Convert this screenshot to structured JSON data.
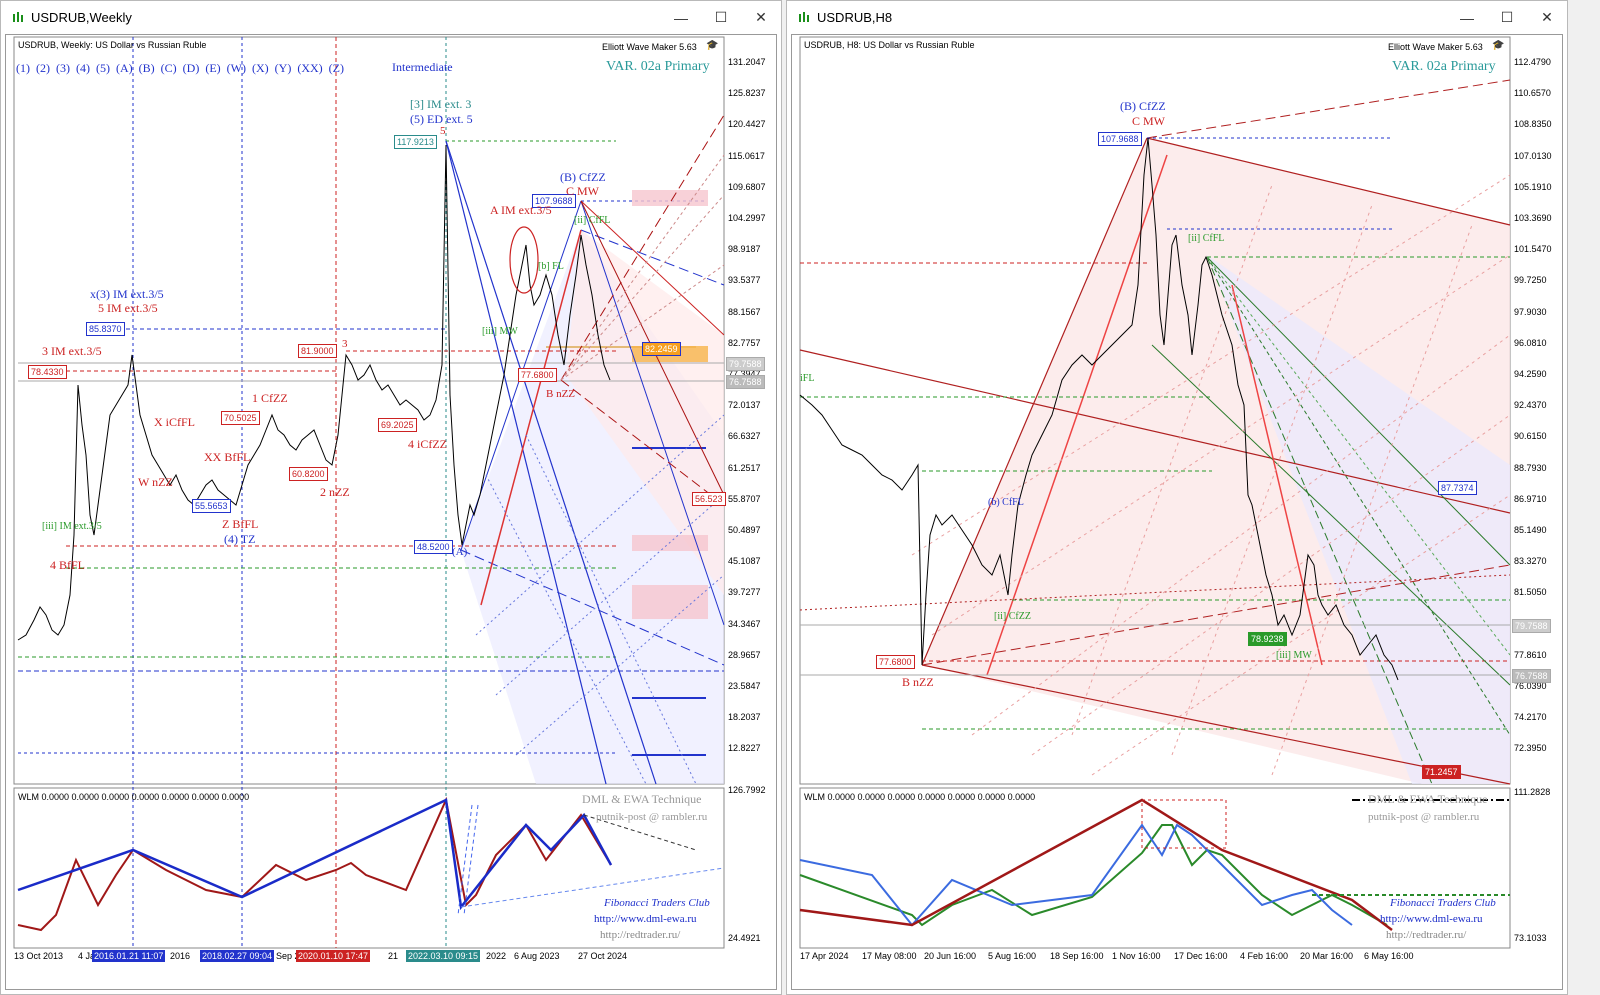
{
  "left": {
    "title": "USDRUB,Weekly",
    "header": "USDRUB, Weekly:  US Dollar vs Russian Ruble",
    "tool": "Elliott Wave Maker 5.63",
    "variant": "VAR. 02a Primary",
    "degree_buttons": [
      "(1)",
      "(2)",
      "(3)",
      "(4)",
      "(5)",
      "(A)",
      "(B)",
      "(C)",
      "(D)",
      "(E)",
      "(W)",
      "(X)",
      "(Y)",
      "(XX)",
      "(Z)"
    ],
    "degree_label": "Intermediate",
    "price_ticks": [
      "131.2047",
      "125.8237",
      "120.4427",
      "115.0617",
      "109.6807",
      "104.2997",
      "98.9187",
      "93.5377",
      "88.1567",
      "82.7757",
      "77.3947",
      "72.0137",
      "66.6327",
      "61.2517",
      "55.8707",
      "50.4897",
      "45.1087",
      "39.7277",
      "34.3467",
      "28.9657",
      "23.5847",
      "18.2037",
      "12.8227"
    ],
    "current_prices": [
      "79.7588",
      "76.7588"
    ],
    "boxes": {
      "b117": "117.9213",
      "b107": "107.9688",
      "b85": "85.8370",
      "b78": "78.4330",
      "b81": "81.9000",
      "b70": "70.5025",
      "b69": "69.2025",
      "b60": "60.8200",
      "b55": "55.5653",
      "b48": "48.5200",
      "b77": "77.6800",
      "b82": "82.2459",
      "b56": "56.523"
    },
    "labels": {
      "im3": "[3] IM ext. 3",
      "ed5": "(5) ED ext. 5",
      "five": "5",
      "bcfzz": "(B) CfZZ",
      "cmw": "C MW",
      "aim": "A IM ext.3/5",
      "x3": "x(3) IM ext.3/5",
      "im5": "5 IM ext.3/5",
      "im3b": "3 IM ext.3/5",
      "three": "3",
      "cfzz1": "1 CfZZ",
      "xicfl": "X iCfFL",
      "wnzz": "W nZZ",
      "xxbfl": "XX BfFL",
      "zbfl": "Z BfFL",
      "tz4": "(4) TZ",
      "nzz2": "2 nZZ",
      "icfzz4": "4 iCfZZ",
      "bffl4": "4 BfFL",
      "iiim": "[iii] IM ext.3/5",
      "bnzz": "B nZZ",
      "iiimw": "[iii] MW",
      "a_cap": "(A)",
      "bfl": "[b] FL",
      "iicfl": "[ii] CfFL"
    },
    "osc_header": "WLM 0.0000 0.0000 0.0000 0.0000 0.0000 0.0000 0.0000",
    "osc_ticks": [
      "126.7992",
      "24.4921"
    ],
    "footer": {
      "technique": "DML & EWA Technique",
      "email": "putnik-post @ rambler.ru",
      "club": "Fibonacci   Traders   Club",
      "site1": "http://www.dml-ewa.ru",
      "site2": "http://redtrader.ru/"
    },
    "dates": [
      "13 Oct 2013",
      "4 Jan",
      "2016",
      "Sep 2",
      "21",
      "2022",
      "6 Aug 2023",
      "27 Oct 2024"
    ],
    "date_tags": [
      "2016.01.21 11:07",
      "2018.02.27 09:04",
      "2020.01.10 17:47",
      "2022.03.10 09:15"
    ]
  },
  "right": {
    "title": "USDRUB,H8",
    "header": "USDRUB, H8:  US Dollar vs Russian Ruble",
    "tool": "Elliott Wave Maker 5.63",
    "variant": "VAR. 02a Primary",
    "price_ticks": [
      "112.4790",
      "110.6570",
      "108.8350",
      "107.0130",
      "105.1910",
      "103.3690",
      "101.5470",
      "99.7250",
      "97.9030",
      "96.0810",
      "94.2590",
      "92.4370",
      "90.6150",
      "88.7930",
      "86.9710",
      "85.1490",
      "83.3270",
      "81.5050",
      "79.6830",
      "77.8610",
      "76.0390",
      "74.2170",
      "72.3950"
    ],
    "current_prices": [
      "79.7588",
      "76.7588"
    ],
    "boxes": {
      "b107": "107.9688",
      "b87": "87.7374",
      "b78": "78.9238",
      "b77": "77.6800",
      "b71": "71.2457"
    },
    "labels": {
      "bcfzz": "(B) CfZZ",
      "cmw": "C MW",
      "bnzz": "B nZZ",
      "iicffl": "[ii] CfFL",
      "bcffl": "(b) CfFL",
      "iicfzz": "[ii] CfZZ",
      "ifl": "iFL",
      "iiimw": "[iii] MW"
    },
    "osc_header": "WLM 0.0000 0.0000 0.0000 0.0000 0.0000 0.0000 0.0000",
    "osc_ticks": [
      "111.2828",
      "73.1033"
    ],
    "footer": {
      "technique": "DML & EWA Technique",
      "email": "putnik-post @ rambler.ru",
      "club": "Fibonacci   Traders   Club",
      "site1": "http://www.dml-ewa.ru",
      "site2": "http://redtrader.ru/"
    },
    "dates": [
      "17 Apr 2024",
      "17 May 08:00",
      "20 Jun 16:00",
      "5 Aug 16:00",
      "18 Sep 16:00",
      "1 Nov 16:00",
      "17 Dec 16:00",
      "4 Feb 16:00",
      "20 Mar 16:00",
      "6 May 16:00"
    ]
  }
}
